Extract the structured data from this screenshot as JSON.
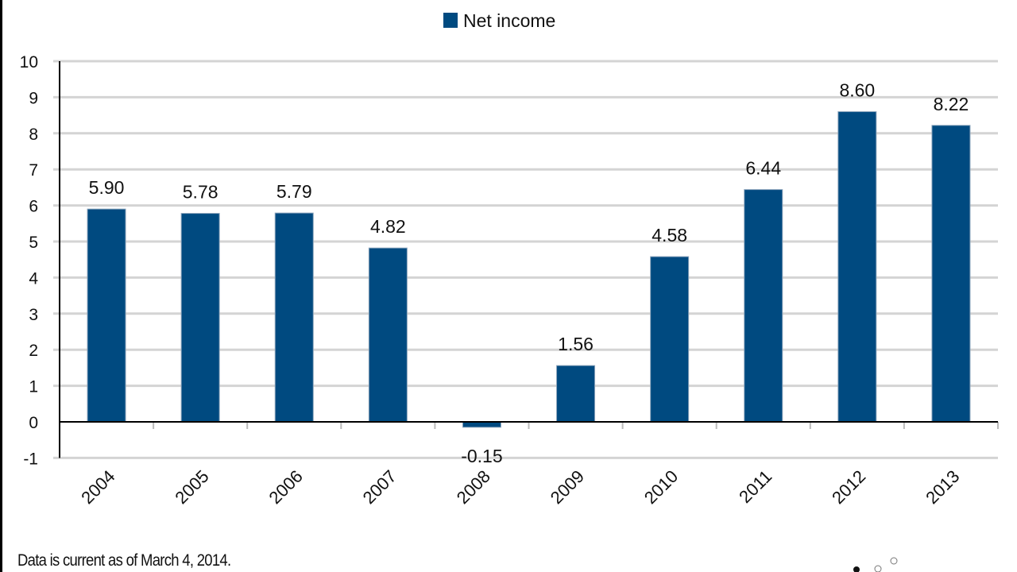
{
  "chart_data": {
    "type": "bar",
    "categories": [
      "2004",
      "2005",
      "2006",
      "2007",
      "2008",
      "2009",
      "2010",
      "2011",
      "2012",
      "2013"
    ],
    "series": [
      {
        "name": "Net income",
        "values": [
          5.9,
          5.78,
          5.79,
          4.82,
          -0.15,
          1.56,
          4.58,
          6.44,
          8.6,
          8.22
        ]
      }
    ],
    "data_labels": [
      "5.90",
      "5.78",
      "5.79",
      "4.82",
      "-0.15",
      "1.56",
      "4.58",
      "6.44",
      "8.60",
      "8.22"
    ],
    "ylim": [
      -1,
      10
    ],
    "yticks": [
      -1,
      0,
      1,
      2,
      3,
      4,
      5,
      6,
      7,
      8,
      9,
      10
    ],
    "grid": true,
    "legend": "top-center",
    "bar_color": "#004A80",
    "xlabel": "",
    "ylabel": "",
    "title": ""
  },
  "footnote": "Data is current as of March 4, 2014."
}
